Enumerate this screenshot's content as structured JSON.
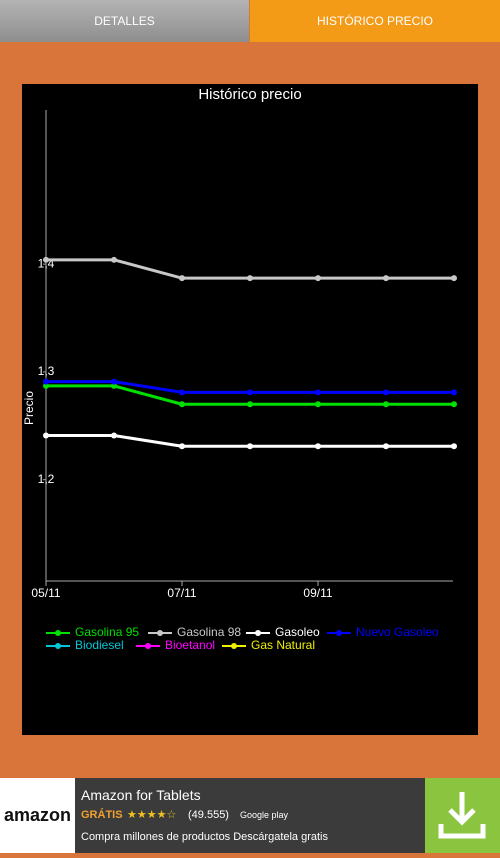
{
  "tabs": [
    "DETALLES",
    "HISTÓRICO PRECIO"
  ],
  "chart_data": {
    "type": "line",
    "title": "Histórico precio",
    "y_label": "Precio",
    "categories": [
      "05/11",
      null,
      "07/11",
      null,
      "09/11",
      null,
      null
    ],
    "ylim": [
      1.106,
      1.543
    ],
    "yticks": [
      {
        "value": 1.2,
        "label": "1,2"
      },
      {
        "value": 1.3,
        "label": "1,3"
      },
      {
        "value": 1.4,
        "label": "1,4"
      }
    ],
    "series": [
      {
        "name": "Gasolina 95",
        "color": "#00e000",
        "values": [
          1.287,
          1.287,
          1.27,
          1.27,
          1.27,
          1.27,
          1.27
        ]
      },
      {
        "name": "Gasolina 98",
        "color": "#c8c8c8",
        "values": [
          1.404,
          1.404,
          1.387,
          1.387,
          1.387,
          1.387,
          1.387
        ]
      },
      {
        "name": "Gasoleo",
        "color": "#ffffff",
        "values": [
          1.241,
          1.241,
          1.231,
          1.231,
          1.231,
          1.231,
          1.231
        ]
      },
      {
        "name": "Nuevo Gasoleo",
        "color": "#0000ff",
        "values": [
          1.291,
          1.291,
          1.281,
          1.281,
          1.281,
          1.281,
          1.281
        ]
      },
      {
        "name": "Biodiesel",
        "color": "#00c8d8",
        "values": [
          null,
          null,
          null,
          null,
          null,
          null,
          null
        ]
      },
      {
        "name": "Bioetanol",
        "color": "#ff00ff",
        "values": [
          null,
          null,
          null,
          null,
          null,
          null,
          null
        ]
      },
      {
        "name": "Gas Natural",
        "color": "#f0f000",
        "values": [
          null,
          null,
          null,
          null,
          null,
          null,
          null
        ]
      }
    ]
  },
  "ad": {
    "logo": "amazon",
    "title": "Amazon for Tablets",
    "price": "GRÁTIS",
    "reviews": "(49.555)",
    "store": "Google play",
    "description": "Compra millones de productos Descárgatela gratis"
  }
}
